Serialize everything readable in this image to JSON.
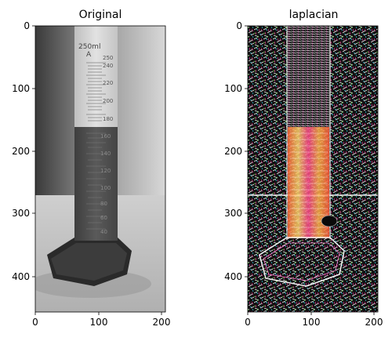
{
  "figure": {
    "panels": [
      {
        "title": "Original",
        "image": "grayscale photo of a graduated cylinder partially filled with dark liquid",
        "cylinder_text": [
          "250ml",
          "A"
        ],
        "graduations": [
          "250",
          "240",
          "220",
          "200",
          "180",
          "160",
          "140",
          "120",
          "100",
          "80",
          "60",
          "40"
        ],
        "x_ticks": [
          "0",
          "100",
          "200"
        ],
        "y_ticks": [
          "0",
          "100",
          "200",
          "300",
          "400"
        ]
      },
      {
        "title": "laplacian",
        "image": "colorful Laplacian edge-detection result of the cylinder photo",
        "x_ticks": [
          "0",
          "100",
          "200"
        ],
        "y_ticks": [
          "0",
          "100",
          "200",
          "300",
          "400"
        ]
      }
    ]
  }
}
